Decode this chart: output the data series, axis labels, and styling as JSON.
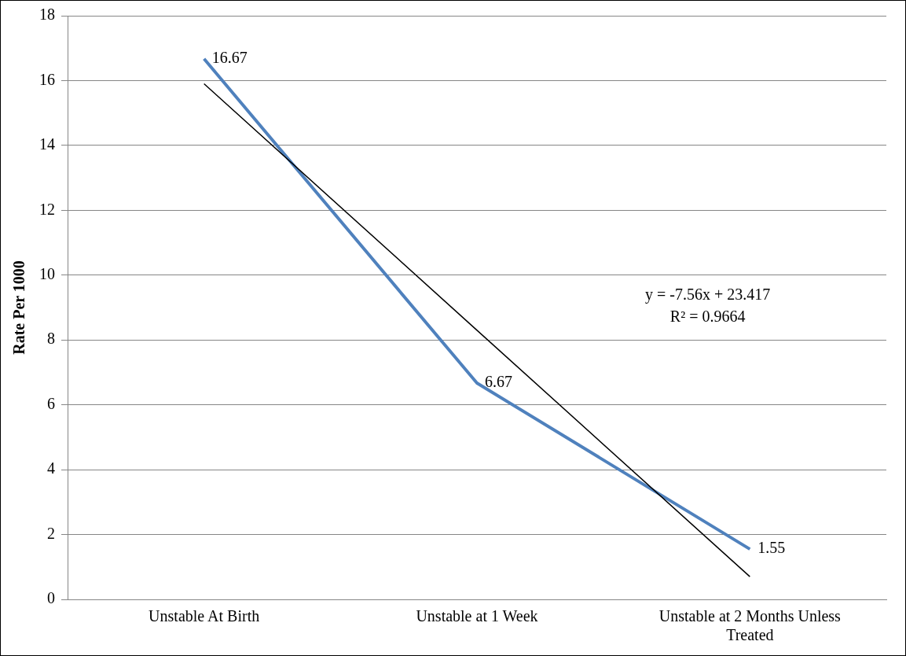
{
  "chart_data": {
    "type": "line",
    "ylabel": "Rate Per 1000",
    "categories": [
      "Unstable At Birth",
      "Unstable at 1 Week",
      "Unstable at 2 Months Unless Treated"
    ],
    "series": [
      {
        "color": "#4f81bd",
        "values": [
          16.67,
          6.67,
          1.55
        ],
        "value_labels": [
          "16.67",
          "6.67",
          "1.55"
        ]
      },
      {
        "type": "line",
        "color": "#000000",
        "values": [
          15.9,
          8.3,
          0.7
        ]
      }
    ],
    "ylim": [
      0,
      18
    ],
    "yticks": [
      0,
      2,
      4,
      6,
      8,
      10,
      12,
      14,
      16,
      18
    ],
    "grid": "y",
    "annotations": [
      "y = -7.56x + 23.417",
      "R² = 0.9664"
    ]
  }
}
